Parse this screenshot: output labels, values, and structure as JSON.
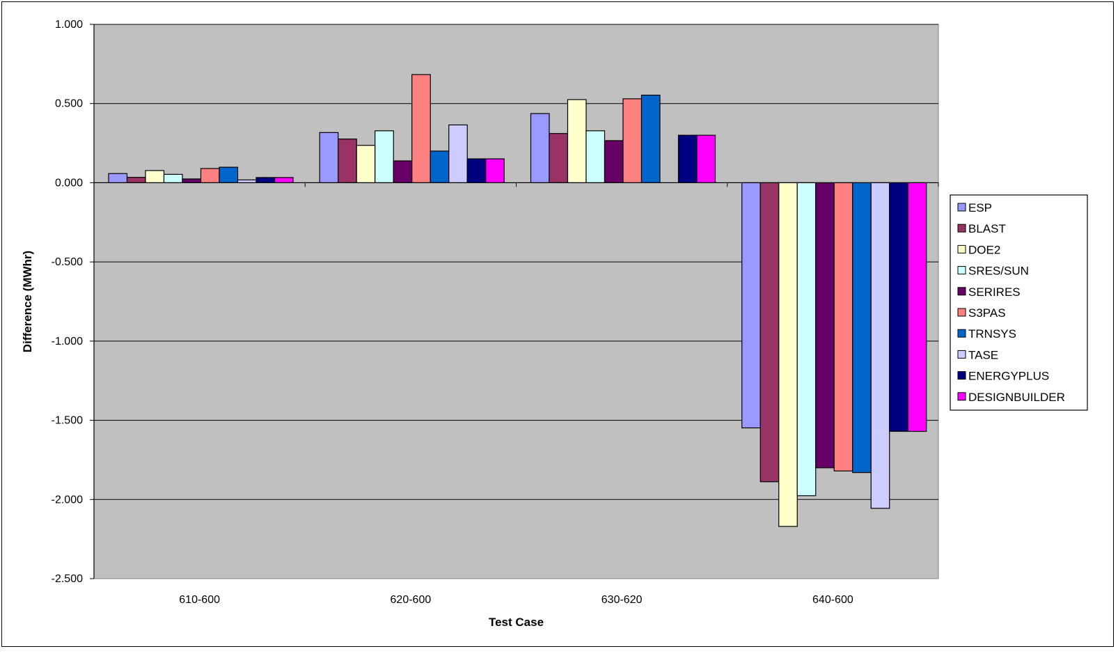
{
  "chart_data": {
    "type": "bar",
    "title": "",
    "xlabel": "Test Case",
    "ylabel": "Difference (MWhr)",
    "ylim": [
      -2.5,
      1.0
    ],
    "yticks": [
      1.0,
      0.5,
      0.0,
      -0.5,
      -1.0,
      -1.5,
      -2.0,
      -2.5
    ],
    "ytick_labels": [
      "1.000",
      "0.500",
      "0.000",
      "-0.500",
      "-1.000",
      "-1.500",
      "-2.000",
      "-2.500"
    ],
    "grid": true,
    "legend_position": "right",
    "categories": [
      "610-600",
      "620-600",
      "630-620",
      "640-600"
    ],
    "series": [
      {
        "name": "ESP",
        "color": "#9999ff",
        "values": [
          0.058,
          0.317,
          0.437,
          -1.548
        ]
      },
      {
        "name": "BLAST",
        "color": "#993366",
        "values": [
          0.034,
          0.276,
          0.311,
          -1.888
        ]
      },
      {
        "name": "DOE2",
        "color": "#ffffcc",
        "values": [
          0.077,
          0.236,
          0.525,
          -2.17
        ]
      },
      {
        "name": "SRES/SUN",
        "color": "#ccffff",
        "values": [
          0.053,
          0.328,
          0.328,
          -1.976
        ]
      },
      {
        "name": "SERIRES",
        "color": "#660066",
        "values": [
          0.024,
          0.138,
          0.266,
          -1.8
        ]
      },
      {
        "name": "S3PAS",
        "color": "#ff8080",
        "values": [
          0.09,
          0.683,
          0.53,
          -1.82
        ]
      },
      {
        "name": "TRNSYS",
        "color": "#0066cc",
        "values": [
          0.098,
          0.2,
          0.553,
          -1.83
        ]
      },
      {
        "name": "TASE",
        "color": "#ccccff",
        "values": [
          0.018,
          0.365,
          null,
          -2.056
        ]
      },
      {
        "name": "ENERGYPLUS",
        "color": "#000080",
        "values": [
          0.033,
          0.151,
          0.3,
          -1.57
        ]
      },
      {
        "name": "DESIGNBUILDER",
        "color": "#ff00ff",
        "values": [
          0.033,
          0.151,
          0.3,
          -1.57
        ]
      }
    ],
    "plot_background": "#c0c0c0"
  }
}
